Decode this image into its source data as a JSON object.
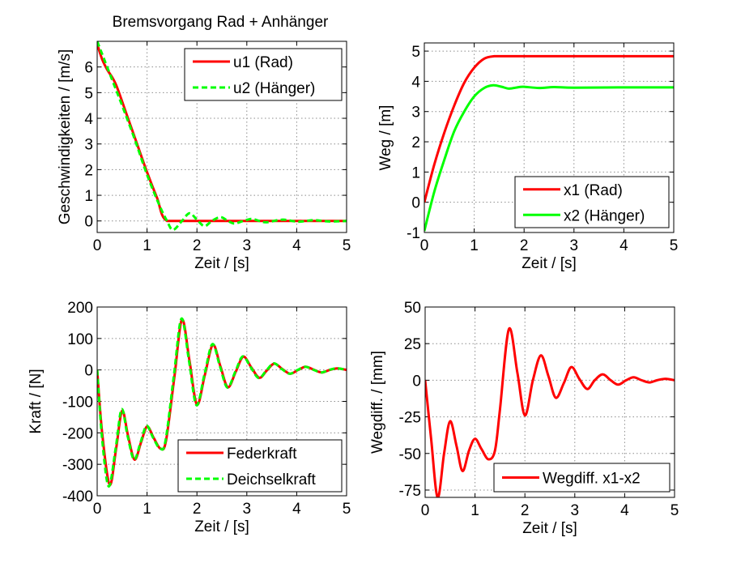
{
  "chart_data": [
    {
      "type": "line",
      "title": "Bremsvorgang Rad + Anhänger",
      "xlabel": "Zeit / [s]",
      "ylabel": "Geschwindigkeiten / [m/s]",
      "xlim": [
        0,
        5
      ],
      "ylim": [
        -0.45,
        7
      ],
      "xticks": [
        0,
        1,
        2,
        3,
        4,
        5
      ],
      "yticks": [
        0,
        1,
        2,
        3,
        4,
        5,
        6
      ],
      "grid": true,
      "legend_position": "top-right",
      "series": [
        {
          "name": "u1 (Rad)",
          "color": "#ff0000",
          "dash": false,
          "x": [
            0,
            0.1,
            0.2,
            0.3,
            0.4,
            0.6,
            0.8,
            1.0,
            1.2,
            1.4,
            2,
            3,
            4,
            5
          ],
          "y": [
            6.9,
            6.3,
            5.9,
            5.6,
            5.2,
            4.1,
            3.0,
            1.9,
            0.9,
            0,
            0,
            0,
            0,
            0
          ]
        },
        {
          "name": "u2 (Hänger)",
          "color": "#00ff00",
          "dash": true,
          "x": [
            0,
            0.1,
            0.3,
            0.5,
            0.75,
            1.0,
            1.25,
            1.4,
            1.52,
            1.7,
            1.85,
            2.0,
            2.15,
            2.3,
            2.47,
            2.62,
            2.75,
            2.93,
            3.1,
            3.25,
            3.4,
            3.72,
            4.03,
            4.34,
            4.65,
            5
          ],
          "y": [
            7.0,
            6.5,
            5.5,
            4.5,
            3.2,
            1.8,
            0.6,
            0,
            -0.35,
            0,
            0.3,
            0.05,
            -0.2,
            0,
            0.15,
            0,
            -0.1,
            0,
            0.08,
            0,
            -0.05,
            0.05,
            -0.03,
            0.03,
            -0.02,
            0
          ]
        }
      ]
    },
    {
      "type": "line",
      "xlabel": "Zeit / [s]",
      "ylabel": "Weg / [m]",
      "xlim": [
        0,
        5
      ],
      "ylim": [
        -1,
        5.27
      ],
      "xticks": [
        0,
        1,
        2,
        3,
        4,
        5
      ],
      "yticks": [
        -1,
        0,
        1,
        2,
        3,
        4,
        5
      ],
      "grid": true,
      "legend_position": "bottom-right",
      "series": [
        {
          "name": "x1 (Rad)",
          "color": "#ff0000",
          "dash": false,
          "x": [
            0,
            0.2,
            0.4,
            0.6,
            0.8,
            1.0,
            1.2,
            1.4,
            1.6,
            2,
            3,
            4,
            5
          ],
          "y": [
            0,
            1.25,
            2.3,
            3.2,
            3.95,
            4.45,
            4.75,
            4.83,
            4.83,
            4.83,
            4.83,
            4.83,
            4.83
          ]
        },
        {
          "name": "x2 (Hänger)",
          "color": "#00ff00",
          "dash": false,
          "x": [
            0,
            0.2,
            0.4,
            0.6,
            0.8,
            1.0,
            1.2,
            1.38,
            1.55,
            1.7,
            1.9,
            2.0,
            2.3,
            2.6,
            3,
            4,
            5
          ],
          "y": [
            -0.95,
            0.35,
            1.4,
            2.35,
            3.0,
            3.5,
            3.78,
            3.87,
            3.82,
            3.76,
            3.81,
            3.82,
            3.78,
            3.81,
            3.79,
            3.8,
            3.8
          ]
        }
      ]
    },
    {
      "type": "line",
      "xlabel": "Zeit / [s]",
      "ylabel": "Kraft / [N]",
      "xlim": [
        0,
        5
      ],
      "ylim": [
        -400,
        200
      ],
      "xticks": [
        0,
        1,
        2,
        3,
        4,
        5
      ],
      "yticks": [
        -400,
        -300,
        -200,
        -100,
        0,
        100,
        200
      ],
      "grid": true,
      "legend_position": "bottom-right",
      "series": [
        {
          "name": "Federkraft",
          "color": "#ff0000",
          "dash": false,
          "x": [
            0,
            0.1,
            0.25,
            0.38,
            0.5,
            0.62,
            0.75,
            0.88,
            1.0,
            1.13,
            1.27,
            1.38,
            1.55,
            1.7,
            1.85,
            2.0,
            2.16,
            2.32,
            2.47,
            2.62,
            2.78,
            2.93,
            3.09,
            3.25,
            3.4,
            3.55,
            3.71,
            3.87,
            4.03,
            4.18,
            4.34,
            4.5,
            4.66,
            4.82,
            5
          ],
          "y": [
            0,
            -200,
            -365,
            -250,
            -130,
            -210,
            -285,
            -230,
            -180,
            -215,
            -250,
            -225,
            -20,
            160,
            30,
            -110,
            -15,
            80,
            12,
            -55,
            -5,
            42,
            8,
            -25,
            -2,
            20,
            3,
            -12,
            0,
            10,
            1,
            -8,
            0,
            5,
            0
          ]
        },
        {
          "name": "Deichselkraft",
          "color": "#00ff00",
          "dash": true,
          "x": [
            0,
            0.1,
            0.23,
            0.37,
            0.49,
            0.61,
            0.74,
            0.87,
            0.99,
            1.12,
            1.26,
            1.37,
            1.54,
            1.69,
            1.84,
            1.99,
            2.15,
            2.31,
            2.46,
            2.61,
            2.77,
            2.92,
            3.08,
            3.24,
            3.39,
            3.54,
            3.7,
            3.86,
            4.02,
            4.17,
            4.33,
            4.49,
            4.65,
            4.81,
            5
          ],
          "y": [
            0,
            -220,
            -370,
            -250,
            -125,
            -210,
            -285,
            -230,
            -178,
            -215,
            -250,
            -225,
            -15,
            163,
            30,
            -112,
            -15,
            82,
            12,
            -56,
            -5,
            43,
            8,
            -26,
            -2,
            21,
            3,
            -12,
            0,
            10,
            1,
            -8,
            0,
            5,
            0
          ]
        }
      ]
    },
    {
      "type": "line",
      "xlabel": "Zeit / [s]",
      "ylabel": "Wegdiff. / [mm]",
      "xlim": [
        0,
        5
      ],
      "ylim": [
        -80,
        50
      ],
      "xticks": [
        0,
        1,
        2,
        3,
        4,
        5
      ],
      "yticks": [
        -75,
        -50,
        -25,
        0,
        25,
        50
      ],
      "grid": true,
      "legend_position": "bottom-right",
      "series": [
        {
          "name": "Wegdiff. x1-x2",
          "color": "#ff0000",
          "dash": false,
          "x": [
            0,
            0.12,
            0.25,
            0.38,
            0.5,
            0.63,
            0.75,
            0.88,
            1.0,
            1.13,
            1.27,
            1.4,
            1.5,
            1.68,
            1.85,
            2.0,
            2.16,
            2.32,
            2.47,
            2.62,
            2.78,
            2.93,
            3.09,
            3.25,
            3.4,
            3.56,
            3.72,
            3.87,
            4.03,
            4.18,
            4.34,
            4.5,
            4.65,
            4.82,
            5
          ],
          "y": [
            0,
            -40,
            -80,
            -50,
            -28,
            -45,
            -62,
            -48,
            -40,
            -47,
            -54,
            -48,
            -20,
            35,
            5,
            -24,
            0,
            17,
            3,
            -12,
            -2,
            9,
            1,
            -6,
            0,
            4,
            0,
            -3,
            0,
            2,
            0,
            -1.5,
            0,
            1,
            0
          ]
        }
      ]
    }
  ]
}
